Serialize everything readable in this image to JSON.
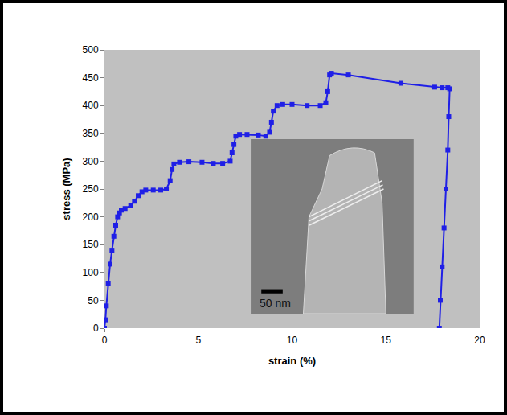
{
  "chart_data": {
    "type": "line",
    "x_label": "strain (%)",
    "y_label": "stress (MPa)",
    "x": [
      0,
      0.05,
      0.1,
      0.2,
      0.3,
      0.4,
      0.5,
      0.6,
      0.7,
      0.8,
      0.9,
      1.1,
      1.4,
      1.6,
      1.8,
      2.0,
      2.2,
      2.6,
      3.0,
      3.3,
      3.5,
      3.6,
      3.7,
      4.0,
      4.5,
      5.2,
      5.8,
      6.3,
      6.7,
      6.8,
      6.9,
      7.0,
      7.2,
      7.6,
      8.2,
      8.6,
      8.8,
      8.9,
      9.0,
      9.2,
      9.5,
      10.0,
      10.8,
      11.5,
      11.8,
      11.9,
      12.0,
      12.1,
      13.0,
      15.8,
      17.6,
      18.0,
      18.3,
      18.4,
      18.35,
      18.3,
      18.2,
      18.1,
      18.0,
      17.9,
      17.85
    ],
    "values": [
      0,
      15,
      40,
      80,
      115,
      140,
      165,
      185,
      200,
      207,
      212,
      215,
      220,
      228,
      238,
      245,
      248,
      248,
      248,
      250,
      265,
      285,
      295,
      298,
      299,
      298,
      296,
      296,
      300,
      315,
      330,
      345,
      348,
      348,
      347,
      345,
      352,
      370,
      390,
      400,
      402,
      402,
      400,
      400,
      405,
      425,
      455,
      458,
      455,
      440,
      433,
      432,
      432,
      430,
      380,
      320,
      250,
      180,
      110,
      50,
      0
    ],
    "color": "#1f1fe6",
    "marker": "square",
    "line_style": "solid",
    "xlim": [
      0,
      20
    ],
    "xticks": [
      0,
      5,
      10,
      15,
      20
    ],
    "ylim": [
      0,
      500
    ],
    "yticks": [
      0,
      50,
      100,
      150,
      200,
      250,
      300,
      350,
      400,
      450,
      500
    ],
    "grid": false,
    "annotations": [
      {
        "text": "50 nm"
      }
    ]
  }
}
